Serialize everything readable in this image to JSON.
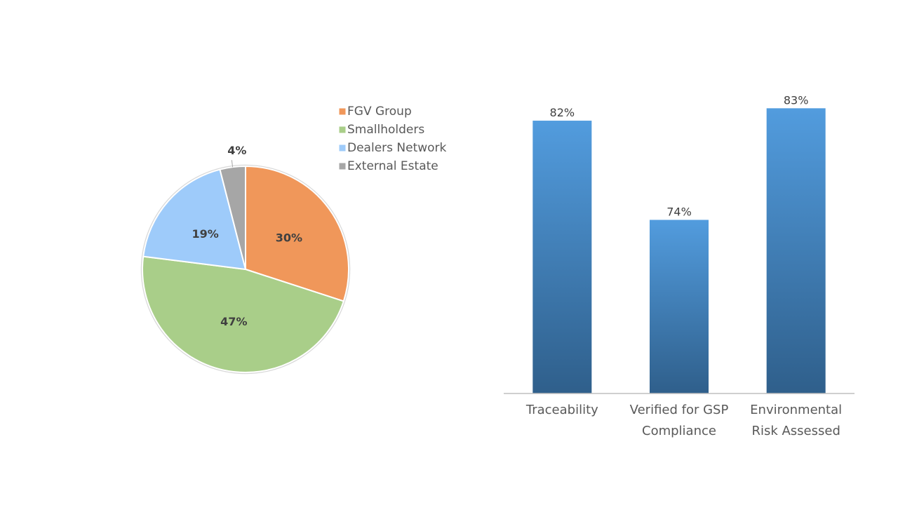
{
  "chart_data": [
    {
      "type": "pie",
      "categories": [
        "FGV Group",
        "Smallholders",
        "Dealers Network",
        "External Estate"
      ],
      "values": [
        30,
        47,
        19,
        4
      ],
      "labels": [
        "30%",
        "47%",
        "19%",
        "4%"
      ],
      "colors": [
        "#F0975A",
        "#A9CE89",
        "#9ECBFA",
        "#A6A6A6"
      ],
      "legend_position": "top-right"
    },
    {
      "type": "bar",
      "categories": [
        "Traceability",
        "Verified for GSP\nCompliance",
        "Environmental\nRisk Assessed"
      ],
      "values": [
        82,
        74,
        83
      ],
      "data_labels": [
        "82%",
        "74%",
        "83%"
      ],
      "ylim": [
        60,
        85
      ],
      "grid": false,
      "bar_color_top": "#529CDE",
      "bar_color_bottom": "#2F5F8B"
    }
  ]
}
